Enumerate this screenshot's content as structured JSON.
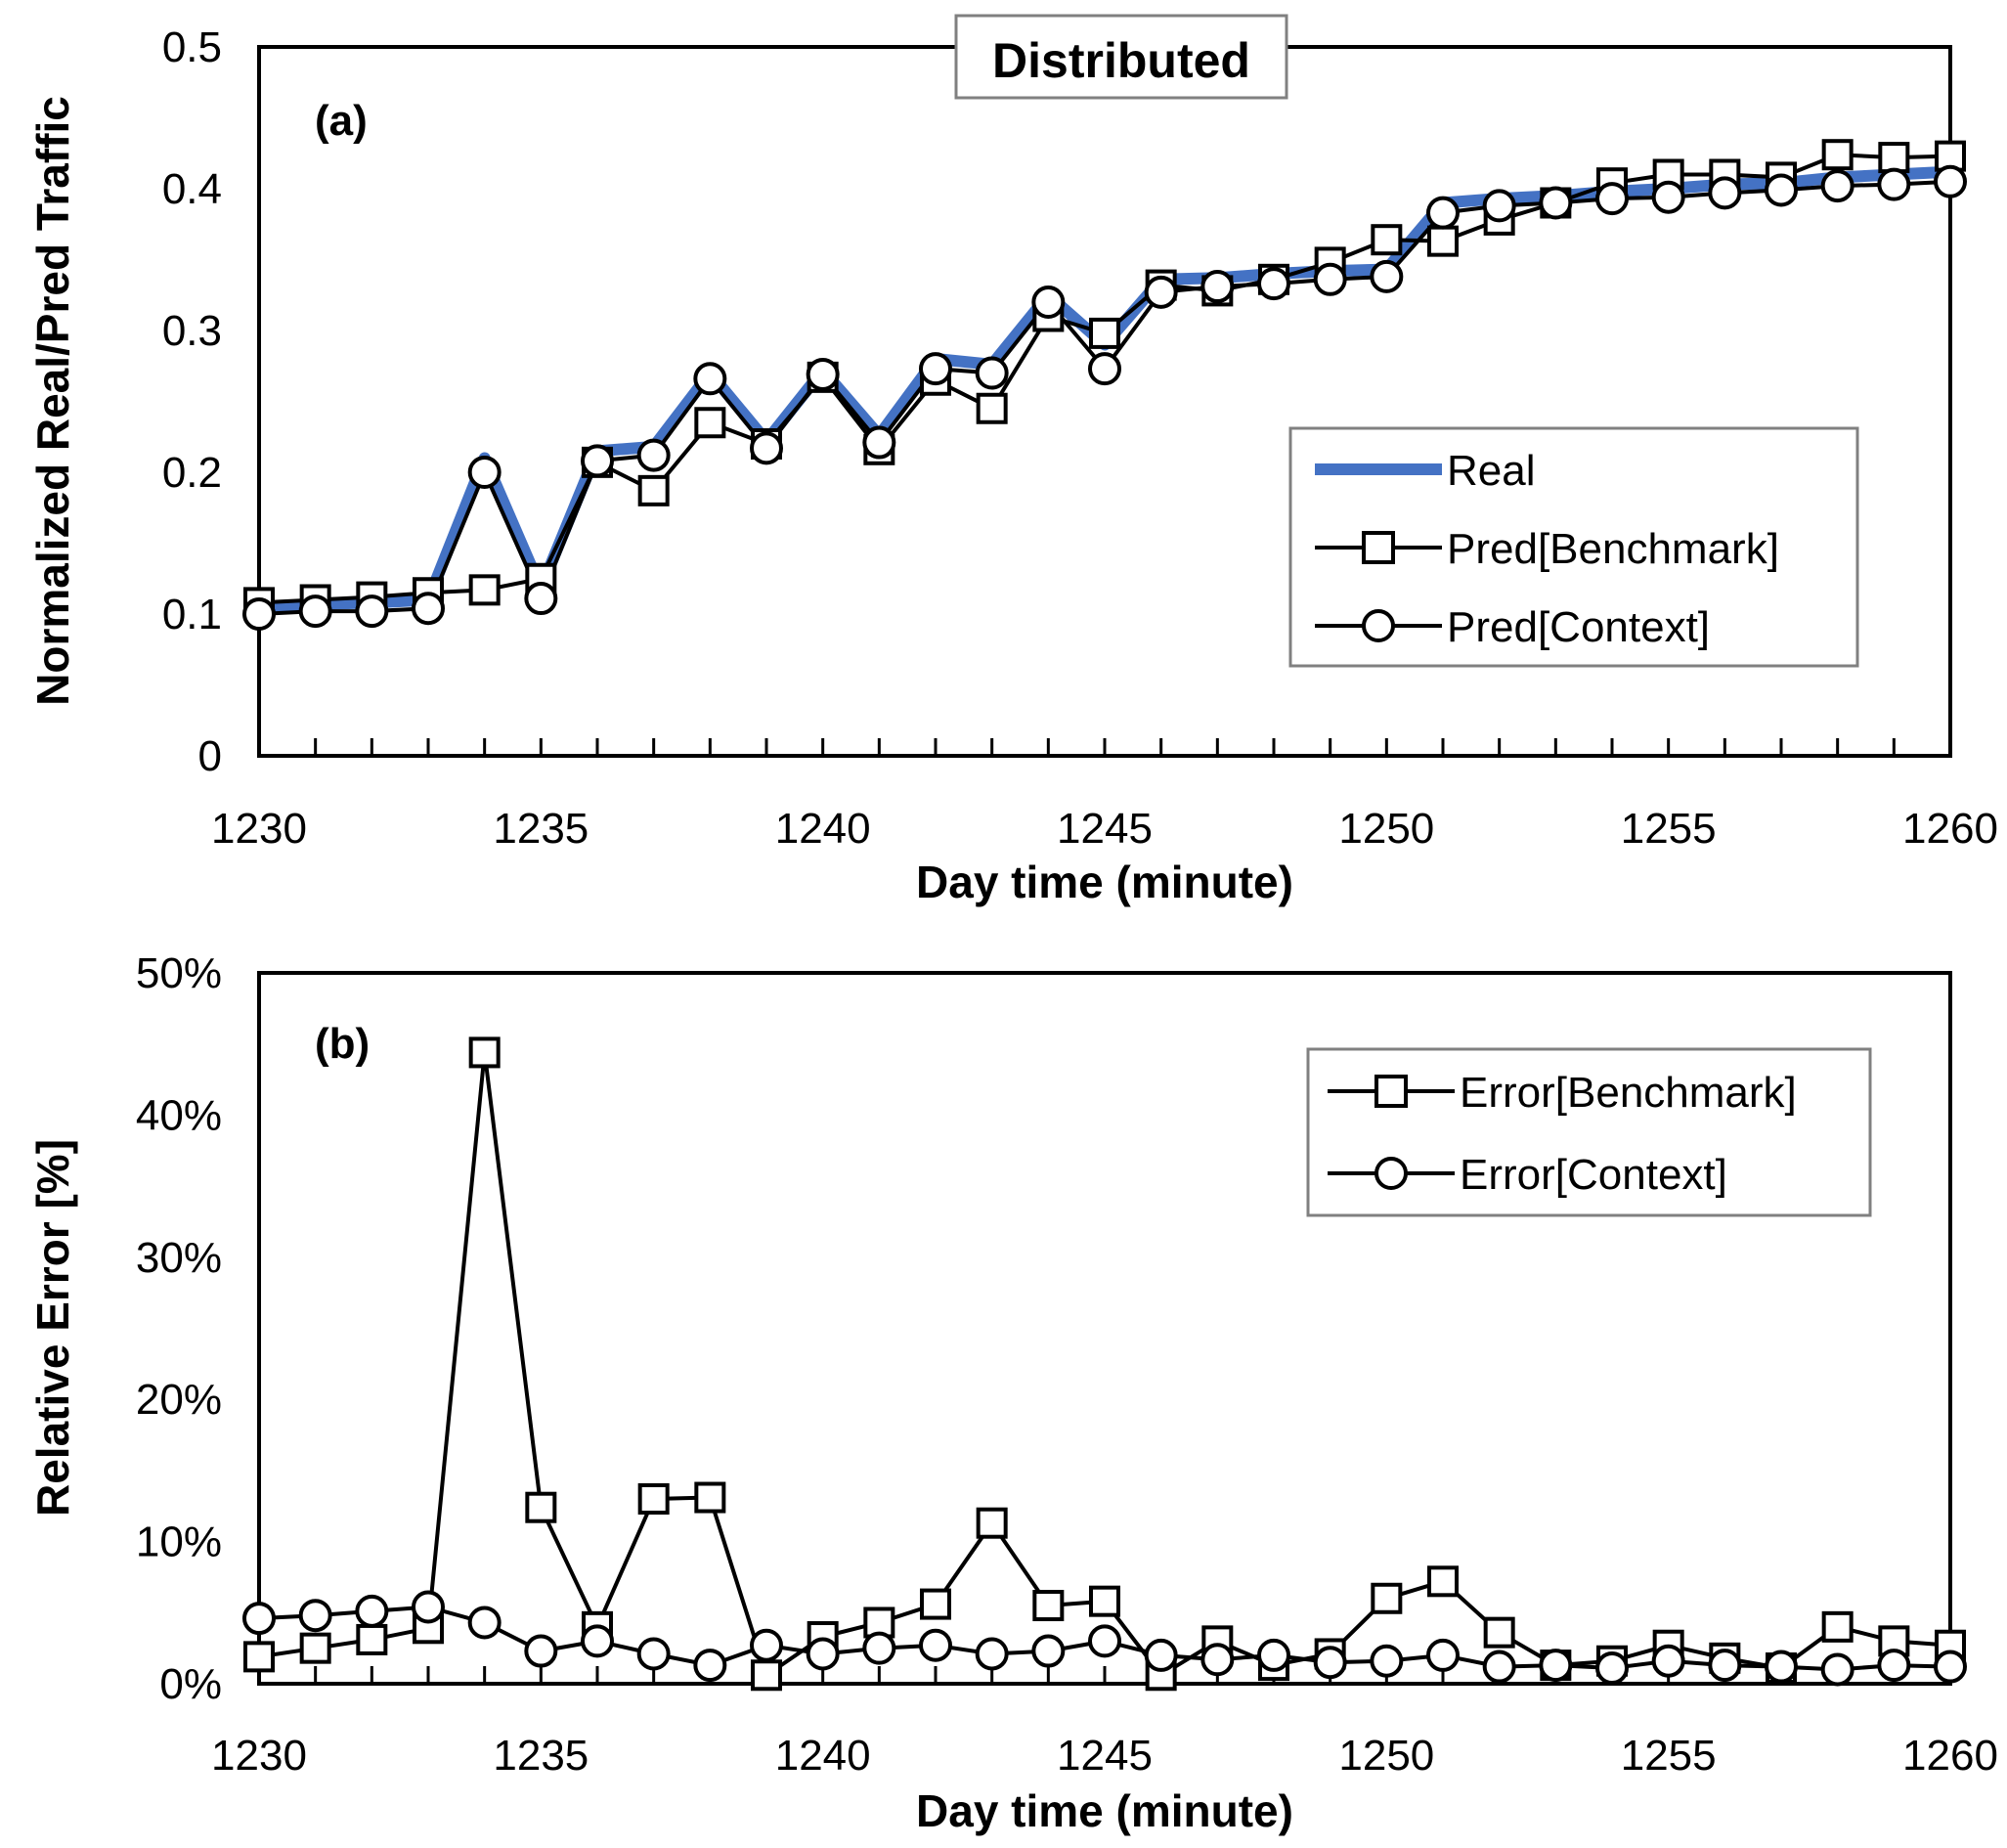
{
  "chart_data": [
    {
      "type": "line",
      "panel_label": "(a)",
      "title": "Distributed",
      "xlabel": "Day time (minute)",
      "ylabel": "Normalized Real/Pred Traffic",
      "xlim": [
        1230,
        1260
      ],
      "ylim": [
        0,
        0.5
      ],
      "xticks": [
        1230,
        1235,
        1240,
        1245,
        1250,
        1255,
        1260
      ],
      "yticks": [
        0,
        0.1,
        0.2,
        0.3,
        0.4,
        0.5
      ],
      "ytick_labels": [
        "0",
        "0.1",
        "0.2",
        "0.3",
        "0.4",
        "0.5"
      ],
      "x": [
        1230,
        1231,
        1232,
        1233,
        1234,
        1235,
        1236,
        1237,
        1238,
        1239,
        1240,
        1241,
        1242,
        1243,
        1244,
        1245,
        1246,
        1247,
        1248,
        1249,
        1250,
        1251,
        1252,
        1253,
        1254,
        1255,
        1256,
        1257,
        1258,
        1259,
        1260
      ],
      "legend_position": "center-right",
      "series": [
        {
          "name": "Real",
          "color": "#4472C4",
          "marker": "none",
          "values": [
            0.105,
            0.107,
            0.108,
            0.11,
            0.21,
            0.118,
            0.215,
            0.218,
            0.27,
            0.222,
            0.272,
            0.226,
            0.28,
            0.276,
            0.325,
            0.29,
            0.336,
            0.337,
            0.34,
            0.342,
            0.343,
            0.39,
            0.393,
            0.395,
            0.398,
            0.4,
            0.403,
            0.404,
            0.408,
            0.41,
            0.412
          ]
        },
        {
          "name": "Pred[Benchmark]",
          "color": "#000000",
          "marker": "square",
          "values": [
            0.108,
            0.11,
            0.112,
            0.115,
            0.117,
            0.125,
            0.207,
            0.187,
            0.235,
            0.22,
            0.267,
            0.216,
            0.265,
            0.245,
            0.31,
            0.298,
            0.332,
            0.328,
            0.336,
            0.348,
            0.364,
            0.363,
            0.378,
            0.39,
            0.404,
            0.41,
            0.41,
            0.408,
            0.424,
            0.422,
            0.423
          ]
        },
        {
          "name": "Pred[Context]",
          "color": "#000000",
          "marker": "circle",
          "values": [
            0.1,
            0.102,
            0.102,
            0.104,
            0.2,
            0.111,
            0.208,
            0.212,
            0.266,
            0.217,
            0.269,
            0.221,
            0.273,
            0.27,
            0.32,
            0.273,
            0.327,
            0.331,
            0.333,
            0.336,
            0.338,
            0.383,
            0.388,
            0.39,
            0.393,
            0.394,
            0.397,
            0.399,
            0.402,
            0.403,
            0.405
          ]
        }
      ]
    },
    {
      "type": "line",
      "panel_label": "(b)",
      "title": "",
      "xlabel": "Day time (minute)",
      "ylabel": "Relative Error [%]",
      "xlim": [
        1230,
        1260
      ],
      "ylim": [
        0,
        50
      ],
      "xticks": [
        1230,
        1235,
        1240,
        1245,
        1250,
        1255,
        1260
      ],
      "yticks": [
        0,
        10,
        20,
        30,
        40,
        50
      ],
      "ytick_labels": [
        "0%",
        "10%",
        "20%",
        "30%",
        "40%",
        "50%"
      ],
      "x": [
        1230,
        1231,
        1232,
        1233,
        1234,
        1235,
        1236,
        1237,
        1238,
        1239,
        1240,
        1241,
        1242,
        1243,
        1244,
        1245,
        1246,
        1247,
        1248,
        1249,
        1250,
        1251,
        1252,
        1253,
        1254,
        1255,
        1256,
        1257,
        1258,
        1259,
        1260
      ],
      "legend_position": "top-right",
      "series": [
        {
          "name": "Error[Benchmark]",
          "color": "#000000",
          "marker": "square",
          "values": [
            1.9,
            2.5,
            3.1,
            3.9,
            44.4,
            12.4,
            4.0,
            13.0,
            13.1,
            0.6,
            3.3,
            4.3,
            5.6,
            11.3,
            5.5,
            5.8,
            0.6,
            3.0,
            1.3,
            2.1,
            6.0,
            7.2,
            3.6,
            1.3,
            1.6,
            2.7,
            1.8,
            1.1,
            4.0,
            3.0,
            2.7
          ]
        },
        {
          "name": "Error[Context]",
          "color": "#000000",
          "marker": "circle",
          "values": [
            4.6,
            4.8,
            5.1,
            5.4,
            4.3,
            2.3,
            3.0,
            2.1,
            1.3,
            2.7,
            2.1,
            2.5,
            2.7,
            2.1,
            2.3,
            3.0,
            2.0,
            1.7,
            2.0,
            1.5,
            1.6,
            2.0,
            1.2,
            1.3,
            1.1,
            1.6,
            1.3,
            1.2,
            1.0,
            1.3,
            1.2
          ]
        }
      ]
    }
  ]
}
